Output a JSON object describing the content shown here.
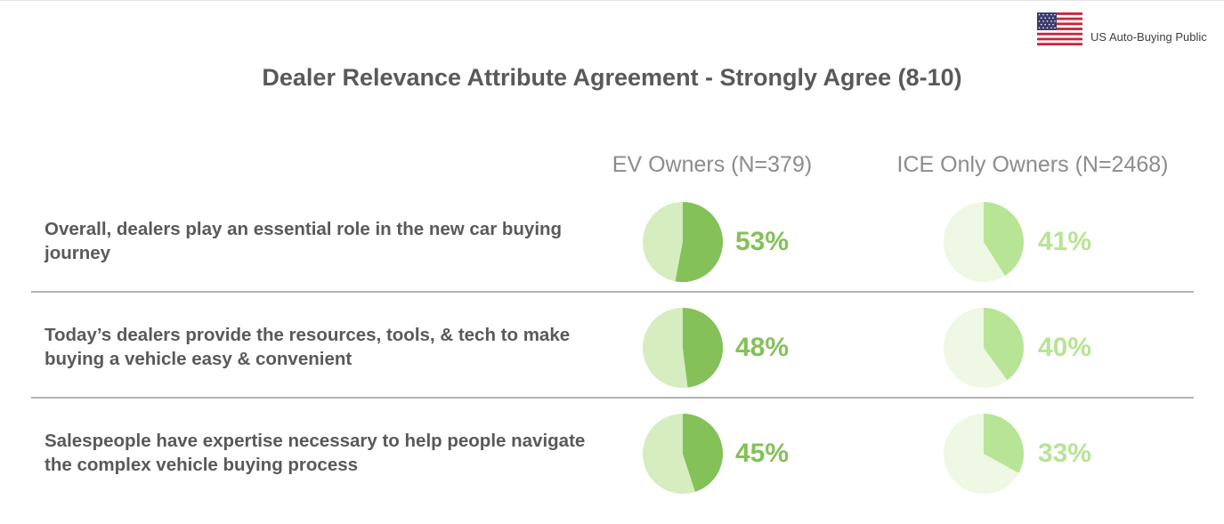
{
  "header": {
    "audience": "US Auto-Buying Public",
    "flag_icon": "us-flag-icon"
  },
  "title": "Dealer Relevance Attribute Agreement - Strongly Agree (8-10)",
  "colors": {
    "ev_fill": "#84c159",
    "ev_bg": "#d5edbf",
    "ice_fill": "#b8e595",
    "ice_bg": "#eef8e4",
    "text": "#595959",
    "divider": "#b3b3b3"
  },
  "chart_data": {
    "type": "pie",
    "title": "Dealer Relevance Attribute Agreement - Strongly Agree (8-10)",
    "series": [
      {
        "name": "EV Owners (N=379)",
        "values": [
          53,
          48,
          45
        ]
      },
      {
        "name": "ICE Only Owners (N=2468)",
        "values": [
          41,
          40,
          33
        ]
      }
    ],
    "categories": [
      "Overall, dealers play an essential role in the new car buying journey",
      "Today’s dealers provide the resources, tools, & tech to make buying a vehicle easy & convenient",
      "Salespeople have expertise necessary to help people navigate the complex vehicle buying process"
    ],
    "rows": [
      {
        "statement": "Overall, dealers play an essential role in the new car buying journey",
        "ev": 53,
        "ice": 41,
        "ev_label": "53%",
        "ice_label": "41%"
      },
      {
        "statement": "Today’s dealers provide the resources, tools, & tech to make buying a vehicle easy & convenient",
        "ev": 48,
        "ice": 40,
        "ev_label": "48%",
        "ice_label": "40%"
      },
      {
        "statement": "Salespeople have expertise necessary to help people navigate the complex vehicle buying process",
        "ev": 45,
        "ice": 33,
        "ev_label": "45%",
        "ice_label": "33%"
      }
    ]
  }
}
